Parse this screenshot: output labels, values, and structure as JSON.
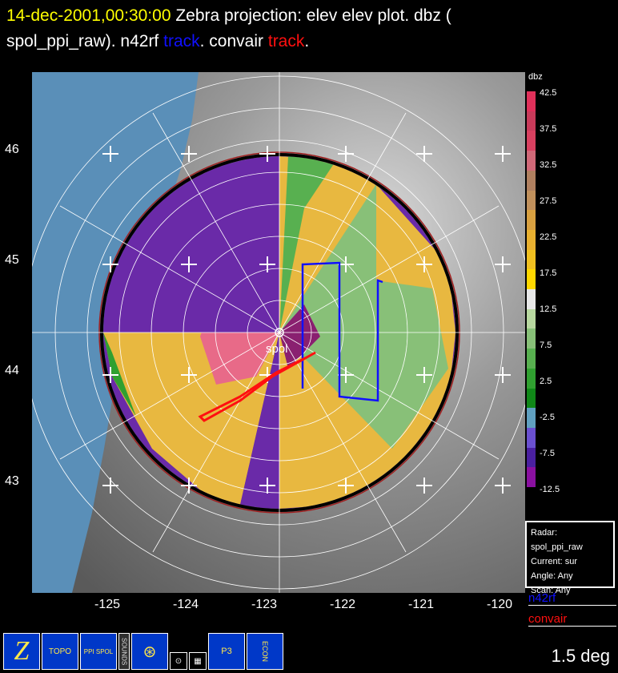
{
  "title": {
    "date": "14-dec-2001,00:30:00",
    "main": "Zebra projection: elev elev  plot.  dbz (",
    "line2_prefix": "spol_ppi_raw).   n42rf",
    "blue_word": "track",
    "line2_mid": ".   convair",
    "red_word": "track",
    "line2_end": "."
  },
  "radar_label": "spol",
  "axes": {
    "y_labels": [
      "46",
      "45",
      "44",
      "43"
    ],
    "x_labels": [
      "-125",
      "-124",
      "-123",
      "-122",
      "-121",
      "-120"
    ]
  },
  "colorbar": {
    "title": "dbz",
    "labels": [
      "42.5",
      "37.5",
      "32.5",
      "27.5",
      "22.5",
      "17.5",
      "12.5",
      "7.5",
      "2.5",
      "-2.5",
      "-7.5",
      "-12.5"
    ],
    "colors": [
      "#e0305a",
      "#c83a5a",
      "#d84060",
      "#d06878",
      "#b08060",
      "#c0905c",
      "#d8a040",
      "#e8b030",
      "#f0c020",
      "#ffd800",
      "#e8e8e8",
      "#b8d8a0",
      "#88c078",
      "#58b050",
      "#30a030",
      "#108818",
      "#60a0c0",
      "#6a50d0",
      "#4a20a0",
      "#8a10a0"
    ]
  },
  "info": {
    "radar": "Radar: spol_ppi_raw",
    "current": "Current: sur",
    "angle": "Angle: Any",
    "scan": "Scan: Any"
  },
  "tracks": {
    "n42rf": "n42rf",
    "convair": "convair",
    "n42rf_color": "#1010ff",
    "convair_color": "#ff1010"
  },
  "toolbar": {
    "zebra": "Z",
    "topo": "TOPO",
    "ppi_spol": "PPI SPOL",
    "sounds": "SOUNDS",
    "p3": "P3",
    "econ": "ECON"
  },
  "elevation": "1.5 deg"
}
